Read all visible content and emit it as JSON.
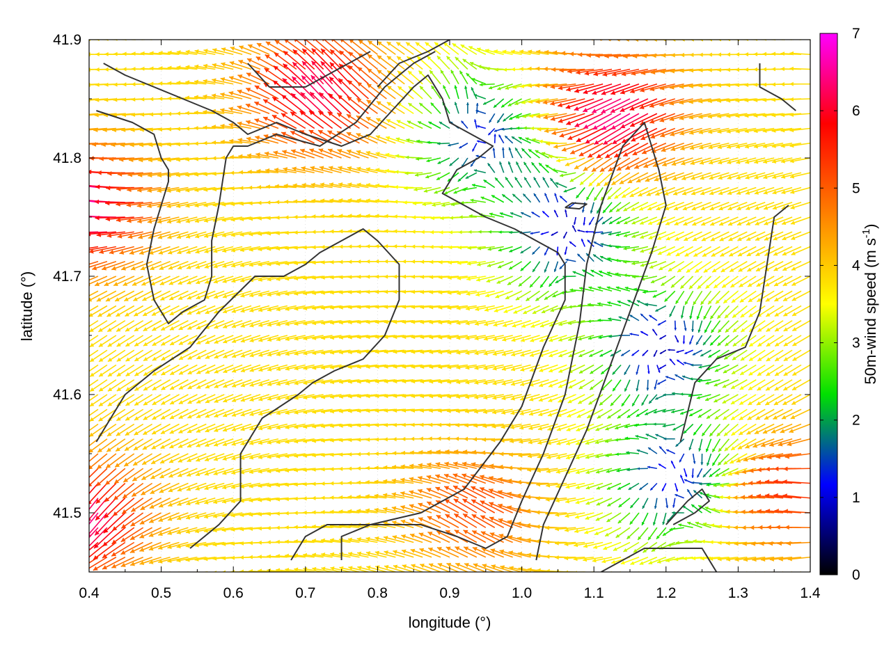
{
  "chart_data": {
    "type": "vector_field",
    "xlabel": "longitude (°)",
    "ylabel": "latitude (°)",
    "colorbar_label": "50m-wind speed (m s",
    "colorbar_label_superscript": "-1",
    "colorbar_label_close": ")",
    "xlim": [
      0.4,
      1.4
    ],
    "ylim": [
      41.45,
      41.9
    ],
    "x_ticks": [
      0.4,
      0.5,
      0.6,
      0.7,
      0.8,
      0.9,
      1.0,
      1.1,
      1.2,
      1.3,
      1.4
    ],
    "x_tick_labels": [
      "0.4",
      "0.5",
      "0.6",
      "0.7",
      "0.8",
      "0.9",
      "1.0",
      "1.1",
      "1.2",
      "1.3",
      "1.4"
    ],
    "y_ticks": [
      41.5,
      41.6,
      41.7,
      41.8,
      41.9
    ],
    "y_tick_labels": [
      "41.5",
      "41.6",
      "41.7",
      "41.8",
      "41.9"
    ],
    "colorbar_range": [
      0,
      7
    ],
    "colorbar_ticks": [
      0,
      1,
      2,
      3,
      4,
      5,
      6,
      7
    ],
    "colorbar_tick_labels": [
      "0",
      "1",
      "2",
      "3",
      "4",
      "5",
      "6",
      "7"
    ],
    "palette_stops": [
      "#000000",
      "#0000ff",
      "#00e000",
      "#ffff00",
      "#ff8000",
      "#ff0000",
      "#ff00ff"
    ],
    "grid": "dotted",
    "wind_field": {
      "grid_spacing_deg": 0.0125,
      "features": [
        {
          "kind": "calm",
          "lon": 0.95,
          "lat": 41.82,
          "speed": 1.2
        },
        {
          "kind": "calm",
          "lon": 1.07,
          "lat": 41.74,
          "speed": 0.8
        },
        {
          "kind": "calm",
          "lon": 1.2,
          "lat": 41.64,
          "speed": 0.8
        },
        {
          "kind": "calm",
          "lon": 1.22,
          "lat": 41.53,
          "speed": 1.0
        },
        {
          "kind": "strong",
          "lon": 0.4,
          "lat": 41.76,
          "speed": 6.8
        },
        {
          "kind": "strong",
          "lon": 0.4,
          "lat": 41.5,
          "speed": 6.5
        },
        {
          "kind": "strong",
          "lon": 0.73,
          "lat": 41.85,
          "speed": 6.3
        },
        {
          "kind": "strong",
          "lon": 1.14,
          "lat": 41.84,
          "speed": 6.5
        },
        {
          "kind": "strong",
          "lon": 1.38,
          "lat": 41.52,
          "speed": 5.5
        },
        {
          "kind": "strong",
          "lon": 0.95,
          "lat": 41.5,
          "speed": 5.2
        }
      ],
      "prevailing_direction": "westward",
      "background_speed": 3.8
    },
    "contours": [
      [
        [
          0.41,
          41.84
        ],
        [
          0.46,
          41.83
        ],
        [
          0.49,
          41.82
        ],
        [
          0.5,
          41.8
        ],
        [
          0.51,
          41.79
        ],
        [
          0.51,
          41.78
        ],
        [
          0.5,
          41.76
        ],
        [
          0.49,
          41.74
        ],
        [
          0.48,
          41.71
        ],
        [
          0.49,
          41.68
        ],
        [
          0.51,
          41.66
        ],
        [
          0.53,
          41.67
        ],
        [
          0.56,
          41.68
        ],
        [
          0.57,
          41.7
        ],
        [
          0.57,
          41.73
        ],
        [
          0.58,
          41.76
        ],
        [
          0.59,
          41.8
        ],
        [
          0.6,
          41.81
        ],
        [
          0.62,
          41.81
        ],
        [
          0.66,
          41.82
        ],
        [
          0.72,
          41.81
        ],
        [
          0.77,
          41.83
        ],
        [
          0.81,
          41.86
        ],
        [
          0.85,
          41.88
        ],
        [
          0.88,
          41.89
        ]
      ],
      [
        [
          0.42,
          41.88
        ],
        [
          0.45,
          41.87
        ],
        [
          0.49,
          41.86
        ],
        [
          0.53,
          41.85
        ],
        [
          0.57,
          41.84
        ],
        [
          0.6,
          41.83
        ],
        [
          0.62,
          41.82
        ],
        [
          0.66,
          41.83
        ],
        [
          0.7,
          41.82
        ],
        [
          0.75,
          41.81
        ],
        [
          0.79,
          41.82
        ],
        [
          0.82,
          41.84
        ],
        [
          0.85,
          41.86
        ],
        [
          0.87,
          41.87
        ],
        [
          0.89,
          41.85
        ],
        [
          0.9,
          41.83
        ],
        [
          0.93,
          41.82
        ],
        [
          0.96,
          41.81
        ],
        [
          0.94,
          41.8
        ],
        [
          0.91,
          41.79
        ],
        [
          0.89,
          41.77
        ],
        [
          0.92,
          41.76
        ],
        [
          0.95,
          41.75
        ],
        [
          0.99,
          41.74
        ],
        [
          1.02,
          41.73
        ],
        [
          1.05,
          41.72
        ],
        [
          1.06,
          41.71
        ],
        [
          1.06,
          41.68
        ],
        [
          1.03,
          41.64
        ],
        [
          1.0,
          41.59
        ],
        [
          0.97,
          41.56
        ],
        [
          0.92,
          41.52
        ],
        [
          0.86,
          41.5
        ],
        [
          0.79,
          41.49
        ],
        [
          0.73,
          41.49
        ],
        [
          0.7,
          41.48
        ],
        [
          0.68,
          41.46
        ]
      ],
      [
        [
          0.54,
          41.47
        ],
        [
          0.58,
          41.49
        ],
        [
          0.61,
          41.51
        ],
        [
          0.61,
          41.55
        ],
        [
          0.64,
          41.58
        ],
        [
          0.69,
          41.6
        ],
        [
          0.71,
          41.61
        ],
        [
          0.74,
          41.62
        ],
        [
          0.78,
          41.63
        ],
        [
          0.81,
          41.65
        ],
        [
          0.83,
          41.68
        ],
        [
          0.83,
          41.71
        ],
        [
          0.8,
          41.73
        ],
        [
          0.78,
          41.74
        ],
        [
          0.75,
          41.73
        ],
        [
          0.72,
          41.72
        ],
        [
          0.7,
          41.71
        ],
        [
          0.67,
          41.7
        ],
        [
          0.63,
          41.7
        ],
        [
          0.58,
          41.67
        ],
        [
          0.54,
          41.64
        ],
        [
          0.49,
          41.62
        ],
        [
          0.45,
          41.6
        ],
        [
          0.42,
          41.57
        ],
        [
          0.41,
          41.56
        ]
      ],
      [
        [
          0.75,
          41.46
        ],
        [
          0.75,
          41.48
        ],
        [
          0.79,
          41.49
        ],
        [
          0.86,
          41.49
        ],
        [
          0.91,
          41.48
        ],
        [
          0.95,
          41.47
        ],
        [
          0.98,
          41.48
        ],
        [
          1.0,
          41.51
        ],
        [
          1.03,
          41.55
        ],
        [
          1.06,
          41.6
        ],
        [
          1.08,
          41.66
        ],
        [
          1.09,
          41.71
        ],
        [
          1.11,
          41.76
        ],
        [
          1.14,
          41.81
        ],
        [
          1.17,
          41.83
        ],
        [
          1.19,
          41.79
        ],
        [
          1.2,
          41.76
        ],
        [
          1.18,
          41.72
        ],
        [
          1.15,
          41.67
        ],
        [
          1.12,
          41.62
        ],
        [
          1.09,
          41.57
        ],
        [
          1.06,
          41.53
        ],
        [
          1.03,
          41.49
        ],
        [
          1.02,
          41.46
        ]
      ],
      [
        [
          1.11,
          41.45
        ],
        [
          1.17,
          41.47
        ],
        [
          1.21,
          41.47
        ],
        [
          1.25,
          41.47
        ],
        [
          1.27,
          41.45
        ]
      ],
      [
        [
          1.2,
          41.49
        ],
        [
          1.23,
          41.51
        ],
        [
          1.25,
          41.52
        ],
        [
          1.26,
          41.51
        ],
        [
          1.24,
          41.5
        ],
        [
          1.21,
          41.49
        ]
      ],
      [
        [
          1.22,
          41.56
        ],
        [
          1.24,
          41.61
        ],
        [
          1.27,
          41.63
        ],
        [
          1.31,
          41.64
        ],
        [
          1.33,
          41.67
        ],
        [
          1.34,
          41.71
        ],
        [
          1.35,
          41.75
        ],
        [
          1.37,
          41.76
        ]
      ],
      [
        [
          1.06,
          41.758
        ],
        [
          1.08,
          41.757
        ],
        [
          1.09,
          41.761
        ],
        [
          1.07,
          41.762
        ],
        [
          1.06,
          41.758
        ]
      ],
      [
        [
          1.33,
          41.88
        ],
        [
          1.33,
          41.86
        ],
        [
          1.36,
          41.85
        ],
        [
          1.38,
          41.84
        ]
      ],
      [
        [
          0.8,
          41.86
        ],
        [
          0.83,
          41.88
        ],
        [
          0.87,
          41.89
        ],
        [
          0.9,
          41.9
        ]
      ],
      [
        [
          0.62,
          41.88
        ],
        [
          0.65,
          41.86
        ],
        [
          0.7,
          41.86
        ],
        [
          0.73,
          41.87
        ],
        [
          0.76,
          41.88
        ],
        [
          0.79,
          41.89
        ]
      ]
    ]
  }
}
